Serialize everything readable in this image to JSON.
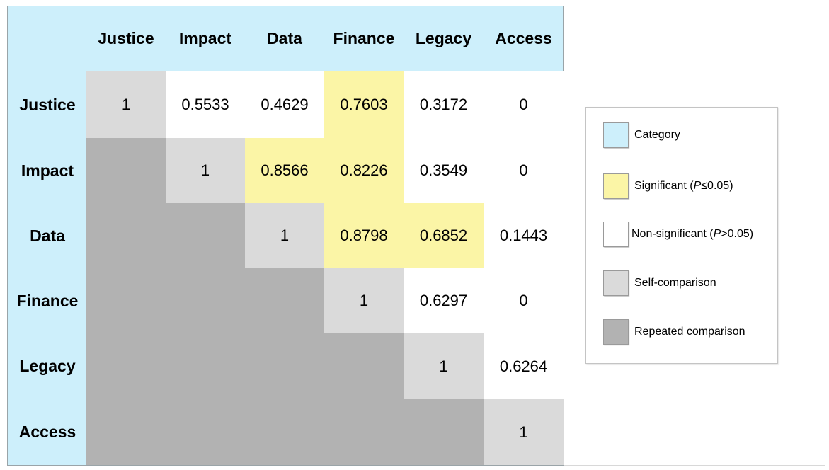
{
  "chart_data": {
    "type": "heatmap",
    "labels": [
      "Justice",
      "Impact",
      "Data",
      "Finance",
      "Legacy",
      "Access"
    ],
    "matrix": [
      [
        1,
        0.5533,
        0.4629,
        0.7603,
        0.3172,
        0
      ],
      [
        null,
        1,
        0.8566,
        0.8226,
        0.3549,
        0
      ],
      [
        null,
        null,
        1,
        0.8798,
        0.6852,
        0.1443
      ],
      [
        null,
        null,
        null,
        1,
        0.6297,
        0
      ],
      [
        null,
        null,
        null,
        null,
        1,
        0.6264
      ],
      [
        null,
        null,
        null,
        null,
        null,
        1
      ]
    ],
    "cell_display": [
      [
        "1",
        "0.5533",
        "0.4629",
        "0.7603",
        "0.3172",
        "0"
      ],
      [
        "",
        "1",
        "0.8566",
        "0.8226",
        "0.3549",
        "0"
      ],
      [
        "",
        "",
        "1",
        "0.8798",
        "0.6852",
        "0.1443"
      ],
      [
        "",
        "",
        "",
        "1",
        "0.6297",
        "0"
      ],
      [
        "",
        "",
        "",
        "",
        "1",
        "0.6264"
      ],
      [
        "",
        "",
        "",
        "",
        "",
        "1"
      ]
    ],
    "significant": [
      [
        0,
        3
      ],
      [
        1,
        2
      ],
      [
        1,
        3
      ],
      [
        2,
        3
      ],
      [
        2,
        4
      ]
    ],
    "legend": [
      {
        "key": "category",
        "label": "Category",
        "color": "#cdeffb"
      },
      {
        "key": "significant",
        "label": "Significant (",
        "italic": "P",
        "suffix": "≤0.05)",
        "color": "#fbf5a6"
      },
      {
        "key": "nonsignificant",
        "label": "Non-significant (",
        "italic": "P",
        "suffix": ">0.05)",
        "color": "#ffffff"
      },
      {
        "key": "self",
        "label": "Self-comparison",
        "color": "#dadada"
      },
      {
        "key": "repeated",
        "label": "Repeated comparison",
        "color": "#b2b2b2"
      }
    ]
  },
  "colors": {
    "category": "#cdeffb",
    "significant": "#fbf5a6",
    "nonsignificant": "#ffffff",
    "self": "#dadada",
    "repeated": "#b2b2b2"
  }
}
